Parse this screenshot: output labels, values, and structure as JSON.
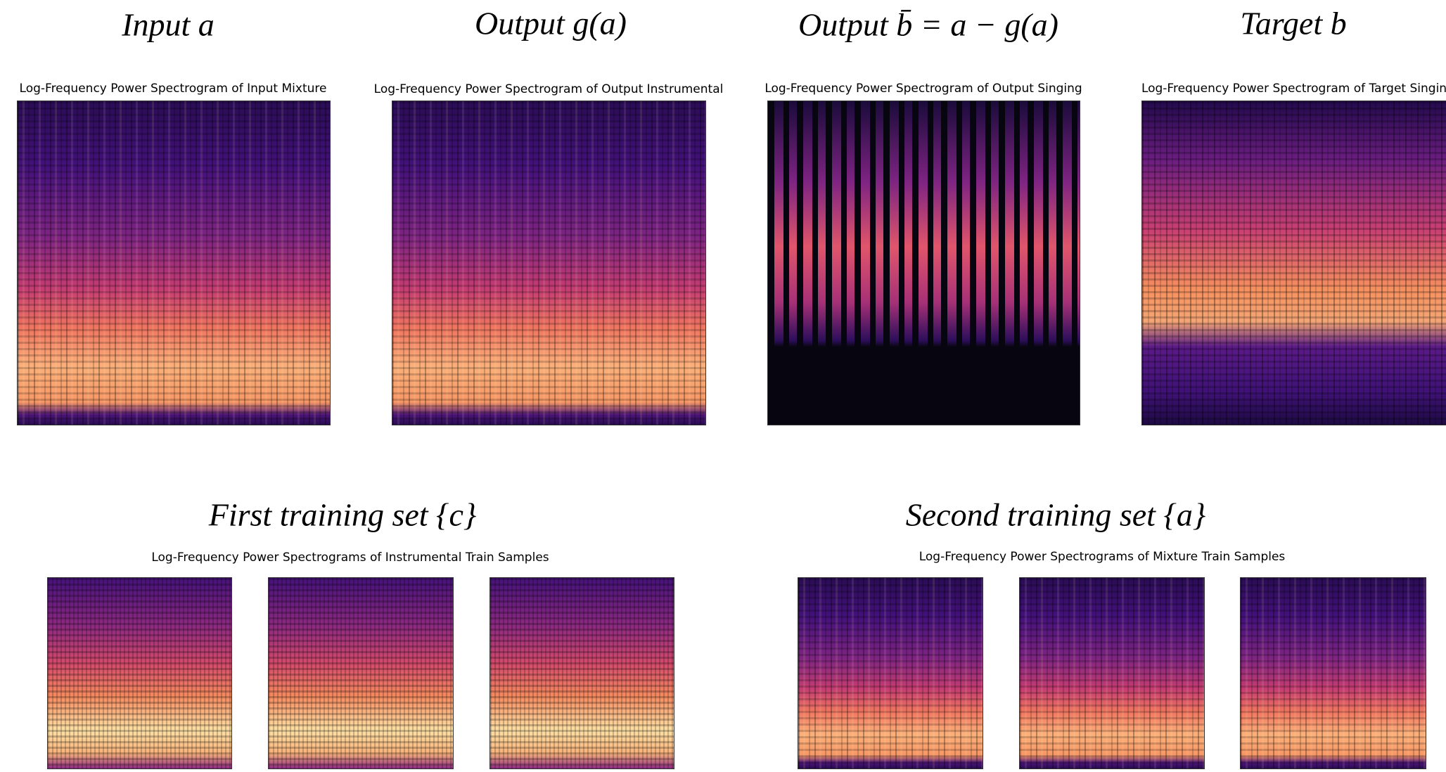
{
  "panels": [
    {
      "heading": "Input a",
      "caption": "Log-Frequency Power Spectrogram of Input Mixture"
    },
    {
      "heading": "Output g(a)",
      "caption": "Log-Frequency Power Spectrogram of Output Instrumental"
    },
    {
      "heading": "Output b̄ = a − g(a)",
      "caption": "Log-Frequency Power Spectrogram of Output Singing"
    },
    {
      "heading": "Target b",
      "caption": "Log-Frequency Power Spectrogram of Target Singin"
    }
  ],
  "training_sets": [
    {
      "heading": "First training set {c}",
      "caption": "Log-Frequency Power Spectrograms of Instrumental Train Samples"
    },
    {
      "heading": "Second training set {a}",
      "caption": "Log-Frequency Power Spectrograms of Mixture Train Samples"
    }
  ]
}
